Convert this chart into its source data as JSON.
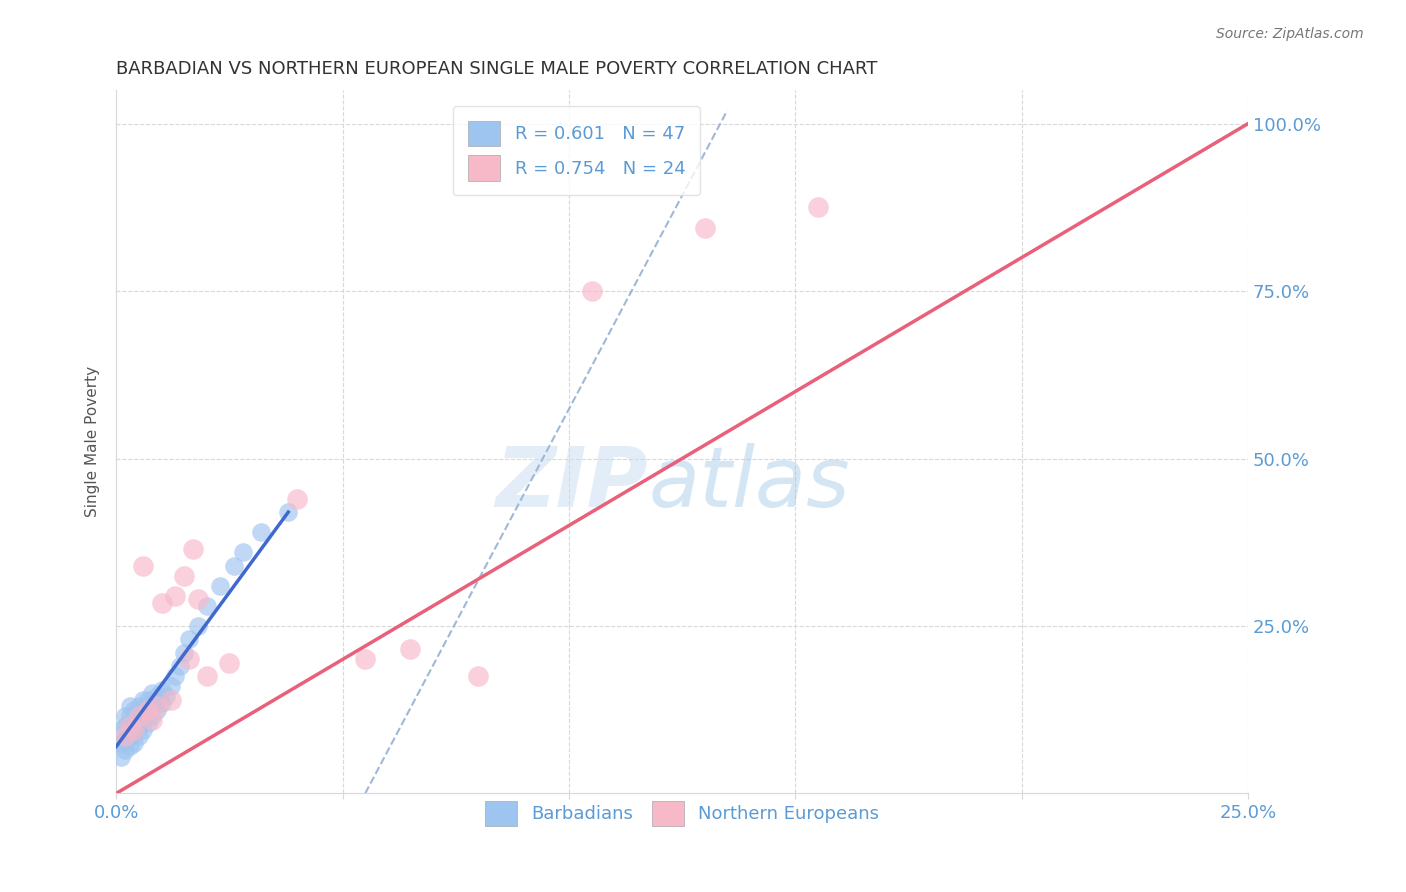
{
  "title": "BARBADIAN VS NORTHERN EUROPEAN SINGLE MALE POVERTY CORRELATION CHART",
  "source": "Source: ZipAtlas.com",
  "ylabel": "Single Male Poverty",
  "xlim": [
    0.0,
    0.25
  ],
  "ylim": [
    0.0,
    1.05
  ],
  "legend_r1": "R = 0.601",
  "legend_n1": "N = 47",
  "legend_r2": "R = 0.754",
  "legend_n2": "N = 24",
  "blue_scatter_color": "#9ec4f0",
  "pink_scatter_color": "#f7b8c8",
  "blue_line_color": "#4169cd",
  "pink_line_color": "#e8607a",
  "dashed_line_color": "#a0b8d8",
  "watermark_zip": "ZIP",
  "watermark_atlas": "atlas",
  "grid_color": "#d8d8d8",
  "tick_label_color": "#5b9bd5",
  "title_color": "#333333",
  "ylabel_color": "#555555",
  "barbadians_x": [
    0.001,
    0.001,
    0.001,
    0.002,
    0.002,
    0.002,
    0.002,
    0.003,
    0.003,
    0.003,
    0.003,
    0.003,
    0.004,
    0.004,
    0.004,
    0.004,
    0.005,
    0.005,
    0.005,
    0.005,
    0.006,
    0.006,
    0.006,
    0.006,
    0.007,
    0.007,
    0.007,
    0.008,
    0.008,
    0.008,
    0.009,
    0.009,
    0.01,
    0.01,
    0.011,
    0.012,
    0.013,
    0.014,
    0.015,
    0.016,
    0.018,
    0.02,
    0.023,
    0.026,
    0.028,
    0.032,
    0.038
  ],
  "barbadians_y": [
    0.055,
    0.075,
    0.095,
    0.065,
    0.08,
    0.1,
    0.115,
    0.07,
    0.085,
    0.1,
    0.115,
    0.13,
    0.075,
    0.09,
    0.11,
    0.125,
    0.085,
    0.1,
    0.115,
    0.13,
    0.095,
    0.11,
    0.125,
    0.14,
    0.105,
    0.12,
    0.14,
    0.115,
    0.13,
    0.15,
    0.125,
    0.145,
    0.135,
    0.155,
    0.145,
    0.16,
    0.175,
    0.19,
    0.21,
    0.23,
    0.25,
    0.28,
    0.31,
    0.34,
    0.36,
    0.39,
    0.42
  ],
  "northern_europeans_x": [
    0.002,
    0.003,
    0.004,
    0.005,
    0.006,
    0.007,
    0.008,
    0.009,
    0.01,
    0.012,
    0.013,
    0.015,
    0.016,
    0.017,
    0.018,
    0.02,
    0.025,
    0.04,
    0.055,
    0.065,
    0.08,
    0.105,
    0.13,
    0.155
  ],
  "northern_europeans_y": [
    0.085,
    0.1,
    0.095,
    0.115,
    0.34,
    0.125,
    0.11,
    0.13,
    0.285,
    0.14,
    0.295,
    0.325,
    0.2,
    0.365,
    0.29,
    0.175,
    0.195,
    0.44,
    0.2,
    0.215,
    0.175,
    0.75,
    0.845,
    0.875
  ],
  "pink_line_x0": 0.0,
  "pink_line_y0": 0.0,
  "pink_line_x1": 0.25,
  "pink_line_y1": 1.0,
  "dashed_line_x0": 0.055,
  "dashed_line_y0": 0.0,
  "dashed_line_x1": 0.135,
  "dashed_line_y1": 1.02,
  "blue_line_x0": 0.0,
  "blue_line_y0": 0.07,
  "blue_line_x1": 0.038,
  "blue_line_y1": 0.42
}
